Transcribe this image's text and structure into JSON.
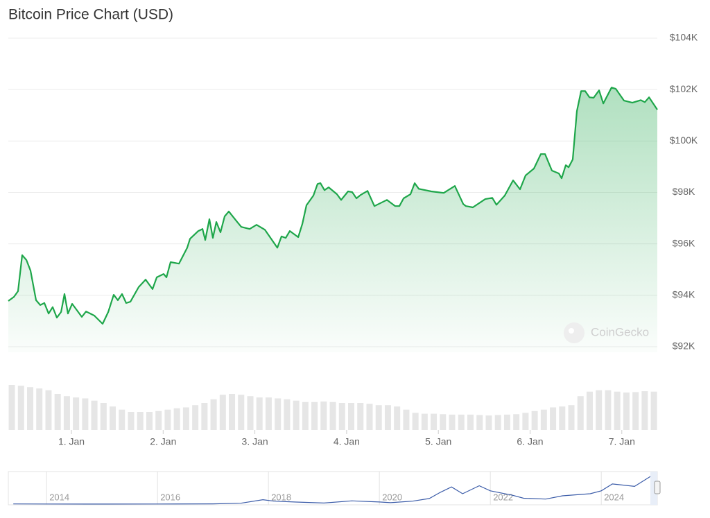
{
  "chart_data": [
    {
      "type": "area",
      "title": "Bitcoin Price Chart (USD)",
      "annotation": "CoinGecko",
      "xlim": [
        0.312,
        7.387
      ],
      "xticks": [
        {
          "value": 1,
          "label": "1. Jan"
        },
        {
          "value": 2,
          "label": "2. Jan"
        },
        {
          "value": 3,
          "label": "3. Jan"
        },
        {
          "value": 4,
          "label": "4. Jan"
        },
        {
          "value": 5,
          "label": "5. Jan"
        },
        {
          "value": 6,
          "label": "6. Jan"
        },
        {
          "value": 7,
          "label": "7. Jan"
        }
      ],
      "ylim": [
        92000,
        104000
      ],
      "yticks": [
        {
          "value": 92000,
          "label": "$92K"
        },
        {
          "value": 94000,
          "label": "$94K"
        },
        {
          "value": 96000,
          "label": "$96K"
        },
        {
          "value": 98000,
          "label": "$98K"
        },
        {
          "value": 100000,
          "label": "$100K"
        },
        {
          "value": 102000,
          "label": "$102K"
        },
        {
          "value": 104000,
          "label": "$104K"
        }
      ],
      "grid": true,
      "x": [
        0.312,
        0.373,
        0.418,
        0.463,
        0.509,
        0.554,
        0.614,
        0.66,
        0.705,
        0.751,
        0.796,
        0.841,
        0.887,
        0.924,
        0.962,
        1.008,
        1.113,
        1.159,
        1.249,
        1.34,
        1.401,
        1.461,
        1.506,
        1.552,
        1.597,
        1.643,
        1.733,
        1.809,
        1.884,
        1.93,
        2.005,
        2.036,
        2.081,
        2.172,
        2.262,
        2.293,
        2.383,
        2.429,
        2.459,
        2.504,
        2.542,
        2.58,
        2.625,
        2.67,
        2.716,
        2.807,
        2.852,
        2.943,
        3.018,
        3.109,
        3.245,
        3.29,
        3.336,
        3.381,
        3.472,
        3.517,
        3.562,
        3.638,
        3.683,
        3.714,
        3.759,
        3.804,
        3.895,
        3.94,
        4.016,
        4.061,
        4.107,
        4.152,
        4.228,
        4.303,
        4.439,
        4.53,
        4.575,
        4.621,
        4.696,
        4.742,
        4.787,
        4.923,
        5.059,
        5.18,
        5.271,
        5.301,
        5.376,
        5.512,
        5.588,
        5.633,
        5.724,
        5.815,
        5.89,
        5.951,
        6.042,
        6.117,
        6.163,
        6.238,
        6.314,
        6.344,
        6.389,
        6.42,
        6.465,
        6.51,
        6.556,
        6.601,
        6.647,
        6.692,
        6.752,
        6.798,
        6.888,
        6.934,
        7.024,
        7.115,
        7.206,
        7.251,
        7.297,
        7.387
      ],
      "series": [
        {
          "color": "#1ea64a",
          "values": [
            93780,
            93940,
            94160,
            95560,
            95370,
            94960,
            93810,
            93620,
            93700,
            93290,
            93540,
            93130,
            93350,
            94050,
            93290,
            93670,
            93160,
            93370,
            93210,
            92890,
            93350,
            94020,
            93810,
            94050,
            93700,
            93750,
            94320,
            94610,
            94240,
            94700,
            94830,
            94700,
            95290,
            95230,
            95850,
            96200,
            96500,
            96580,
            96150,
            96960,
            96230,
            96850,
            96450,
            97070,
            97260,
            96850,
            96660,
            96580,
            96740,
            96550,
            95850,
            96290,
            96230,
            96500,
            96260,
            96770,
            97500,
            97880,
            98330,
            98360,
            98090,
            98200,
            97930,
            97710,
            98040,
            98010,
            97770,
            97900,
            98060,
            97470,
            97710,
            97470,
            97470,
            97770,
            97930,
            98360,
            98140,
            98040,
            97980,
            98250,
            97550,
            97470,
            97420,
            97740,
            97790,
            97520,
            97880,
            98470,
            98120,
            98660,
            98930,
            99490,
            99490,
            98850,
            98740,
            98550,
            99060,
            98980,
            99280,
            101160,
            101940,
            101940,
            101700,
            101680,
            101970,
            101460,
            102080,
            102030,
            101570,
            101490,
            101590,
            101510,
            101700,
            101220
          ]
        }
      ]
    },
    {
      "type": "bar",
      "color": "#e6e6e6",
      "xlim": [
        0.312,
        7.387
      ],
      "ylim": [
        0,
        100
      ],
      "x": [
        0.35,
        0.45,
        0.55,
        0.65,
        0.75,
        0.85,
        0.95,
        1.05,
        1.15,
        1.25,
        1.35,
        1.45,
        1.55,
        1.65,
        1.75,
        1.85,
        1.95,
        2.05,
        2.15,
        2.25,
        2.35,
        2.45,
        2.55,
        2.65,
        2.75,
        2.85,
        2.95,
        3.05,
        3.15,
        3.25,
        3.35,
        3.45,
        3.55,
        3.65,
        3.75,
        3.85,
        3.95,
        4.05,
        4.15,
        4.25,
        4.35,
        4.45,
        4.55,
        4.65,
        4.75,
        4.85,
        4.95,
        5.05,
        5.15,
        5.25,
        5.35,
        5.45,
        5.55,
        5.65,
        5.75,
        5.85,
        5.95,
        6.05,
        6.15,
        6.25,
        6.35,
        6.45,
        6.55,
        6.65,
        6.75,
        6.85,
        6.95,
        7.05,
        7.15,
        7.25,
        7.35
      ],
      "values": [
        100,
        98,
        95,
        92,
        88,
        80,
        75,
        72,
        70,
        65,
        60,
        52,
        45,
        40,
        40,
        40,
        42,
        45,
        48,
        50,
        55,
        60,
        68,
        78,
        80,
        78,
        75,
        72,
        72,
        70,
        68,
        65,
        62,
        62,
        63,
        62,
        60,
        60,
        60,
        58,
        55,
        55,
        52,
        45,
        38,
        36,
        36,
        35,
        34,
        34,
        34,
        33,
        32,
        33,
        34,
        35,
        38,
        42,
        45,
        50,
        52,
        55,
        75,
        85,
        88,
        88,
        85,
        83,
        84,
        86,
        85
      ]
    },
    {
      "type": "line",
      "xlim": [
        2013.31,
        2025.01
      ],
      "ylim": [
        0,
        110000
      ],
      "xticks": [
        2014,
        2016,
        2018,
        2020,
        2022,
        2024
      ],
      "x": [
        2013.4,
        2014,
        2015,
        2016,
        2017,
        2017.5,
        2017.9,
        2018.1,
        2018.5,
        2019,
        2019.5,
        2020,
        2020.2,
        2020.6,
        2020.9,
        2021.1,
        2021.3,
        2021.5,
        2021.8,
        2022.0,
        2022.4,
        2022.6,
        2023,
        2023.3,
        2023.8,
        2024.0,
        2024.2,
        2024.6,
        2024.9,
        2025.01
      ],
      "series": [
        {
          "color": "#3a5ba8",
          "values": [
            800,
            500,
            250,
            400,
            1000,
            3000,
            15000,
            10000,
            7000,
            3700,
            11000,
            7200,
            5000,
            10000,
            19000,
            40000,
            58000,
            35000,
            62000,
            45000,
            30000,
            20000,
            17000,
            28000,
            35000,
            45000,
            68000,
            60000,
            95000,
            101000
          ]
        }
      ]
    }
  ]
}
